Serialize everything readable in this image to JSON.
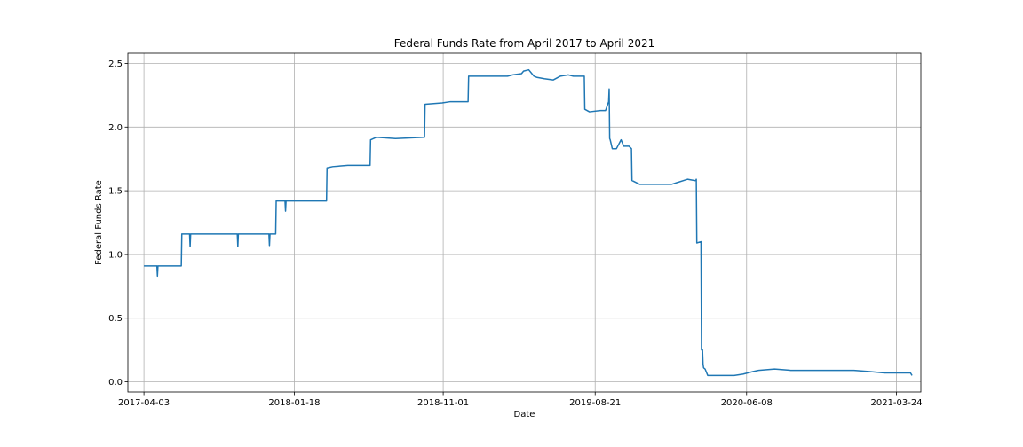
{
  "chart_data": {
    "type": "line",
    "title": "Federal Funds Rate from April 2017 to April 2021",
    "xlabel": "Date",
    "ylabel": "Federal Funds Rate",
    "xlim": [
      "2017-03-03",
      "2021-05-10"
    ],
    "ylim": [
      -0.08,
      2.58
    ],
    "x_ticks": [
      "2017-04-03",
      "2018-01-18",
      "2018-11-01",
      "2019-08-21",
      "2020-06-08",
      "2021-03-24"
    ],
    "y_ticks": [
      0.0,
      0.5,
      1.0,
      1.5,
      2.0,
      2.5
    ],
    "y_tick_labels": [
      "0.0",
      "0.5",
      "1.0",
      "1.5",
      "2.0",
      "2.5"
    ],
    "grid": true,
    "line_color": "#1f77b4",
    "series": [
      {
        "x": [
          "2017-04-03",
          "2017-04-28",
          "2017-04-29",
          "2017-04-30",
          "2017-05-31",
          "2017-06-01",
          "2017-06-02",
          "2017-06-14",
          "2017-06-15",
          "2017-06-30",
          "2017-07-01",
          "2017-07-02",
          "2017-07-31",
          "2017-08-01",
          "2017-08-02",
          "2017-08-31",
          "2017-09-01",
          "2017-09-02",
          "2017-09-30",
          "2017-10-01",
          "2017-10-02",
          "2017-10-31",
          "2017-11-01",
          "2017-11-02",
          "2017-11-30",
          "2017-12-01",
          "2017-12-02",
          "2017-12-13",
          "2017-12-14",
          "2017-12-31",
          "2018-01-01",
          "2018-01-02",
          "2018-01-31",
          "2018-02-01",
          "2018-02-02",
          "2018-02-28",
          "2018-03-01",
          "2018-03-02",
          "2018-03-15",
          "2018-03-21",
          "2018-03-22",
          "2018-04-02",
          "2018-05-01",
          "2018-05-02",
          "2018-06-13",
          "2018-06-14",
          "2018-06-25",
          "2018-08-01",
          "2018-09-26",
          "2018-09-27",
          "2018-10-30",
          "2018-11-15",
          "2018-12-19",
          "2018-12-20",
          "2019-03-01",
          "2019-03-05",
          "2019-03-15",
          "2019-04-01",
          "2019-04-05",
          "2019-04-15",
          "2019-04-25",
          "2019-05-01",
          "2019-05-15",
          "2019-06-01",
          "2019-06-15",
          "2019-06-30",
          "2019-07-10",
          "2019-07-31",
          "2019-08-01",
          "2019-08-10",
          "2019-08-31",
          "2019-09-10",
          "2019-09-16",
          "2019-09-17",
          "2019-09-18",
          "2019-09-19",
          "2019-09-23",
          "2019-10-01",
          "2019-10-10",
          "2019-10-15",
          "2019-10-25",
          "2019-10-30",
          "2019-10-31",
          "2019-11-15",
          "2019-12-01",
          "2019-12-31",
          "2020-01-15",
          "2020-02-15",
          "2020-02-29",
          "2020-03-02",
          "2020-03-03",
          "2020-03-04",
          "2020-03-12",
          "2020-03-13",
          "2020-03-15",
          "2020-03-16",
          "2020-03-17",
          "2020-03-20",
          "2020-03-25",
          "2020-04-01",
          "2020-04-15",
          "2020-05-01",
          "2020-05-15",
          "2020-06-01",
          "2020-06-20",
          "2020-07-01",
          "2020-08-01",
          "2020-09-01",
          "2020-10-01",
          "2020-12-01",
          "2021-01-01",
          "2021-02-01",
          "2021-03-01",
          "2021-04-01",
          "2021-04-20",
          "2021-04-23"
        ],
        "values": [
          0.91,
          0.91,
          0.83,
          0.91,
          0.91,
          0.91,
          0.91,
          0.91,
          1.16,
          1.16,
          1.06,
          1.16,
          1.16,
          1.16,
          1.16,
          1.16,
          1.16,
          1.16,
          1.16,
          1.06,
          1.16,
          1.16,
          1.16,
          1.16,
          1.16,
          1.07,
          1.16,
          1.16,
          1.42,
          1.42,
          1.34,
          1.42,
          1.42,
          1.42,
          1.42,
          1.42,
          1.42,
          1.42,
          1.42,
          1.42,
          1.68,
          1.69,
          1.7,
          1.7,
          1.7,
          1.9,
          1.92,
          1.91,
          1.92,
          2.18,
          2.19,
          2.2,
          2.2,
          2.4,
          2.4,
          2.4,
          2.41,
          2.42,
          2.44,
          2.45,
          2.4,
          2.39,
          2.38,
          2.37,
          2.4,
          2.41,
          2.4,
          2.4,
          2.14,
          2.12,
          2.13,
          2.13,
          2.2,
          2.3,
          1.91,
          1.9,
          1.83,
          1.83,
          1.9,
          1.85,
          1.85,
          1.83,
          1.58,
          1.55,
          1.55,
          1.55,
          1.55,
          1.59,
          1.58,
          1.58,
          1.59,
          1.09,
          1.1,
          0.25,
          0.25,
          0.14,
          0.11,
          0.1,
          0.05,
          0.05,
          0.05,
          0.05,
          0.05,
          0.06,
          0.08,
          0.09,
          0.1,
          0.09,
          0.09,
          0.09,
          0.09,
          0.08,
          0.07,
          0.07,
          0.07,
          0.05
        ]
      }
    ]
  }
}
